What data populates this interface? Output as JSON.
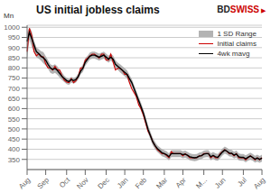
{
  "chart_data": {
    "type": "line",
    "title": "US initial jobless claims",
    "y_label": "Mn",
    "categories": [
      "Aug",
      null,
      null,
      null,
      null,
      null,
      null,
      null,
      "Sep",
      null,
      null,
      null,
      null,
      null,
      null,
      null,
      null,
      "Oct",
      null,
      null,
      null,
      null,
      null,
      null,
      null,
      "Nov",
      null,
      null,
      null,
      null,
      null,
      null,
      null,
      null,
      "Dec",
      null,
      null,
      null,
      null,
      null,
      null,
      null,
      "Jan",
      null,
      null,
      null,
      null,
      null,
      null,
      null,
      "Feb",
      null,
      null,
      null,
      null,
      null,
      null,
      null,
      null,
      "Mar",
      null,
      null,
      null,
      null,
      null,
      null,
      null,
      "Apr",
      null,
      null,
      null,
      null,
      null,
      null,
      null,
      null,
      "M...",
      null,
      null,
      null,
      null,
      null,
      null,
      null,
      "Jun",
      null,
      null,
      null,
      null,
      null,
      null,
      null,
      null,
      "Jul",
      null,
      null,
      null,
      null,
      null,
      null,
      null,
      "Aug"
    ],
    "series": [
      {
        "name": "1 SD Range",
        "type": "band",
        "color": "#999999",
        "lower": [
          845,
          940,
          903,
          878,
          853,
          846,
          836,
          823,
          813,
          796,
          776,
          770,
          776,
          766,
          753,
          740,
          730,
          720,
          716,
          728,
          723,
          728,
          743,
          768,
          780,
          810,
          826,
          841,
          846,
          846,
          841,
          836,
          841,
          846,
          836,
          826,
          836,
          826,
          798,
          790,
          778,
          768,
          758,
          748,
          728,
          710,
          680,
          650,
          620,
          590,
          560,
          520,
          480,
          450,
          420,
          401,
          386,
          376,
          366,
          361,
          356,
          346,
          361,
          361,
          361,
          361,
          361,
          356,
          359,
          353,
          346,
          343,
          341,
          343,
          349,
          351,
          359,
          361,
          361,
          346,
          353,
          346,
          343,
          356,
          369,
          379,
          373,
          364,
          363,
          354,
          359,
          346,
          343,
          343,
          336,
          343,
          349,
          343,
          334,
          339,
          333,
          339
        ],
        "upper": [
          975,
          1000,
          980,
          935,
          900,
          892,
          882,
          878,
          858,
          838,
          818,
          812,
          818,
          808,
          792,
          778,
          762,
          752,
          746,
          756,
          750,
          756,
          773,
          798,
          818,
          848,
          860,
          876,
          880,
          880,
          876,
          870,
          876,
          880,
          870,
          860,
          870,
          860,
          838,
          826,
          818,
          808,
          798,
          788,
          766,
          746,
          716,
          686,
          656,
          628,
          596,
          558,
          518,
          488,
          458,
          436,
          420,
          410,
          400,
          395,
          390,
          380,
          395,
          395,
          395,
          395,
          395,
          390,
          393,
          387,
          380,
          377,
          375,
          377,
          383,
          385,
          393,
          395,
          395,
          380,
          387,
          380,
          377,
          390,
          403,
          413,
          407,
          398,
          397,
          388,
          393,
          380,
          377,
          377,
          370,
          377,
          383,
          377,
          368,
          373,
          367,
          373
        ]
      },
      {
        "name": "Initial claims",
        "type": "line",
        "color": "#cc0000",
        "values": [
          880,
          995,
          960,
          880,
          860,
          870,
          855,
          855,
          820,
          800,
          800,
          790,
          808,
          790,
          790,
          760,
          740,
          730,
          728,
          748,
          728,
          738,
          758,
          800,
          800,
          838,
          848,
          860,
          868,
          868,
          858,
          848,
          868,
          868,
          838,
          838,
          868,
          828,
          790,
          798,
          798,
          788,
          768,
          768,
          728,
          698,
          678,
          658,
          618,
          598,
          568,
          528,
          488,
          468,
          438,
          418,
          398,
          388,
          378,
          378,
          368,
          358,
          388,
          378,
          378,
          378,
          378,
          368,
          378,
          368,
          358,
          358,
          358,
          358,
          368,
          368,
          378,
          378,
          378,
          358,
          368,
          358,
          358,
          378,
          388,
          398,
          388,
          378,
          378,
          368,
          378,
          358,
          358,
          358,
          348,
          358,
          368,
          358,
          348,
          358,
          348,
          358
        ]
      },
      {
        "name": "4wk mavg",
        "type": "line",
        "color": "#000000",
        "values": [
          930,
          975,
          945,
          912,
          880,
          870,
          858,
          850,
          838,
          818,
          800,
          793,
          798,
          788,
          773,
          758,
          748,
          738,
          733,
          743,
          738,
          743,
          758,
          783,
          798,
          828,
          843,
          858,
          863,
          863,
          858,
          853,
          858,
          863,
          853,
          843,
          853,
          843,
          818,
          808,
          798,
          788,
          778,
          768,
          748,
          728,
          698,
          668,
          638,
          608,
          578,
          538,
          498,
          468,
          438,
          418,
          403,
          393,
          383,
          378,
          373,
          363,
          378,
          378,
          378,
          378,
          378,
          373,
          376,
          370,
          363,
          360,
          358,
          360,
          366,
          368,
          376,
          378,
          378,
          363,
          370,
          363,
          360,
          373,
          386,
          396,
          390,
          381,
          380,
          371,
          376,
          363,
          360,
          360,
          353,
          360,
          366,
          360,
          351,
          356,
          350,
          356
        ]
      }
    ],
    "ylim": [
      300,
      1010
    ],
    "yticks": [
      350,
      400,
      450,
      500,
      550,
      600,
      650,
      700,
      750,
      800,
      850,
      900,
      950,
      1000
    ],
    "grid": true,
    "legend": "upper right",
    "annotations": [
      {
        "text": "BD",
        "color": "#222222"
      },
      {
        "text": "SWISS",
        "color": "#cc0000"
      },
      {
        "text": "▶",
        "color": "#cc0000"
      }
    ]
  }
}
